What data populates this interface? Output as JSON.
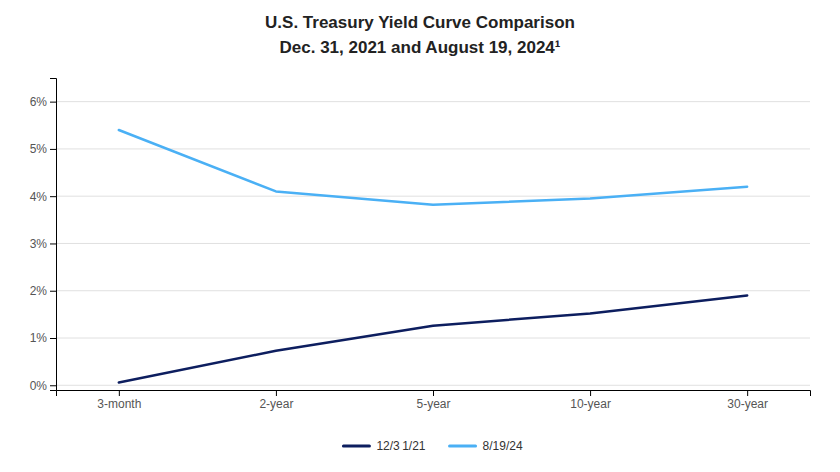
{
  "chart_data": {
    "type": "line",
    "title": "U.S. Treasury Yield Curve Comparison",
    "subtitle": "Dec. 31, 2021 and August 19, 2024¹",
    "categories": [
      "3-month",
      "2-year",
      "5-year",
      "10-year",
      "30-year"
    ],
    "series": [
      {
        "name": "12/3 1/21",
        "color": "#0d1e5f",
        "values": [
          0.06,
          0.73,
          1.26,
          1.52,
          1.9
        ]
      },
      {
        "name": "8/19/24",
        "color": "#4ab0f5",
        "values": [
          5.4,
          4.1,
          3.82,
          3.95,
          4.2
        ]
      }
    ],
    "ylim": [
      -0.1,
      6.5
    ],
    "yticks": [
      {
        "value": 0,
        "label": "0%"
      },
      {
        "value": 1,
        "label": "1%"
      },
      {
        "value": 2,
        "label": "2%"
      },
      {
        "value": 3,
        "label": "3%"
      },
      {
        "value": 4,
        "label": "4%"
      },
      {
        "value": 5,
        "label": "5%"
      },
      {
        "value": 6,
        "label": "6%"
      }
    ],
    "grid": true,
    "legend": "bottom"
  }
}
